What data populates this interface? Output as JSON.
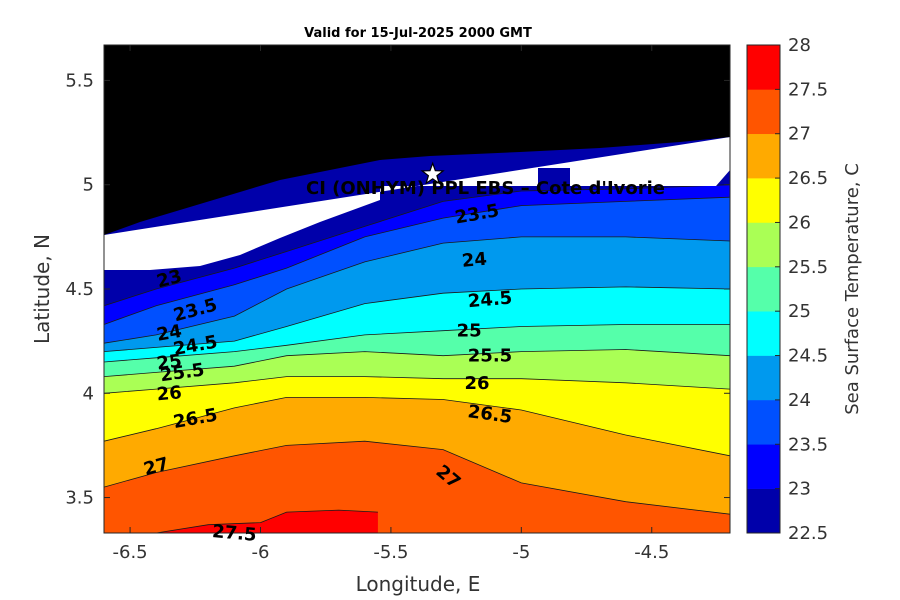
{
  "chart_data": {
    "type": "heatmap",
    "title": "Valid for 15-Jul-2025 2000 GMT",
    "xlabel": "Longitude, E",
    "ylabel": "Latitude, N",
    "xlim": [
      -6.6,
      -4.2
    ],
    "ylim": [
      3.33,
      5.67
    ],
    "xticks": [
      "-6.5",
      "-6",
      "-5.5",
      "-5",
      "-4.5"
    ],
    "xtick_values": [
      -6.5,
      -6,
      -5.5,
      -5,
      -4.5
    ],
    "yticks": [
      "3.5",
      "4",
      "4.5",
      "5",
      "5.5"
    ],
    "ytick_values": [
      3.5,
      4,
      4.5,
      5,
      5.5
    ],
    "grid": false,
    "land_color": "#000000",
    "site_label": "CI (ONHYM) PPL EBS  – Cote d'Ivorie",
    "site_marker": {
      "lon": -5.34,
      "lat": 5.05
    },
    "colorbar": {
      "label": "Sea Surface Temperature, C",
      "ticks": [
        "22.5",
        "23",
        "23.5",
        "24",
        "24.5",
        "25",
        "25.5",
        "26",
        "26.5",
        "27",
        "27.5",
        "28"
      ],
      "tick_values": [
        22.5,
        23,
        23.5,
        24,
        24.5,
        25,
        25.5,
        26,
        26.5,
        27,
        27.5,
        28
      ],
      "colors": [
        "#0000aa",
        "#0000ff",
        "#0050ff",
        "#0099ee",
        "#00ffff",
        "#55ffaa",
        "#aaff55",
        "#ffff00",
        "#ffaa00",
        "#ff5500",
        "#ff0000"
      ]
    },
    "contour_levels": [
      23,
      23.5,
      24,
      24.5,
      25,
      25.5,
      26,
      26.5,
      27
    ],
    "isotherms": [
      {
        "level": 23,
        "lon": [
          -6.6,
          -6.4,
          -6.1,
          -5.9,
          -5.6,
          -5.3,
          -5.0,
          -4.6,
          -4.2
        ],
        "lat": [
          4.42,
          4.5,
          4.6,
          4.68,
          4.8,
          4.92,
          4.97,
          4.98,
          5.0
        ]
      },
      {
        "level": 23.5,
        "lon": [
          -6.6,
          -6.4,
          -6.1,
          -5.9,
          -5.6,
          -5.3,
          -5.0,
          -4.6,
          -4.2
        ],
        "lat": [
          4.33,
          4.42,
          4.52,
          4.6,
          4.75,
          4.84,
          4.9,
          4.92,
          4.94
        ]
      },
      {
        "level": 24,
        "lon": [
          -6.6,
          -6.4,
          -6.1,
          -5.9,
          -5.6,
          -5.3,
          -5.0,
          -4.6,
          -4.2
        ],
        "lat": [
          4.24,
          4.28,
          4.37,
          4.5,
          4.63,
          4.72,
          4.75,
          4.75,
          4.73
        ]
      },
      {
        "level": 24.5,
        "lon": [
          -6.6,
          -6.4,
          -6.1,
          -5.9,
          -5.6,
          -5.3,
          -5.0,
          -4.6,
          -4.2
        ],
        "lat": [
          4.2,
          4.22,
          4.25,
          4.32,
          4.43,
          4.48,
          4.5,
          4.51,
          4.5
        ]
      },
      {
        "level": 25,
        "lon": [
          -6.6,
          -6.4,
          -6.1,
          -5.9,
          -5.6,
          -5.3,
          -5.0,
          -4.6,
          -4.2
        ],
        "lat": [
          4.15,
          4.17,
          4.2,
          4.23,
          4.28,
          4.3,
          4.32,
          4.33,
          4.33
        ]
      },
      {
        "level": 25.5,
        "lon": [
          -6.6,
          -6.4,
          -6.1,
          -5.9,
          -5.6,
          -5.3,
          -5.0,
          -4.6,
          -4.2
        ],
        "lat": [
          4.08,
          4.1,
          4.13,
          4.18,
          4.2,
          4.18,
          4.2,
          4.21,
          4.18
        ]
      },
      {
        "level": 26,
        "lon": [
          -6.6,
          -6.4,
          -6.1,
          -5.9,
          -5.6,
          -5.3,
          -5.0,
          -4.6,
          -4.2
        ],
        "lat": [
          4.0,
          4.02,
          4.05,
          4.08,
          4.08,
          4.07,
          4.07,
          4.05,
          4.02
        ]
      },
      {
        "level": 26.5,
        "lon": [
          -6.6,
          -6.4,
          -6.1,
          -5.9,
          -5.6,
          -5.3,
          -5.0,
          -4.6,
          -4.2
        ],
        "lat": [
          3.77,
          3.83,
          3.93,
          3.98,
          3.98,
          3.97,
          3.92,
          3.8,
          3.7
        ]
      },
      {
        "level": 27,
        "lon": [
          -6.6,
          -6.4,
          -6.1,
          -5.9,
          -5.6,
          -5.3,
          -5.0,
          -4.6,
          -4.2
        ],
        "lat": [
          3.55,
          3.62,
          3.7,
          3.75,
          3.77,
          3.73,
          3.57,
          3.48,
          3.42
        ]
      },
      {
        "level": 27.5,
        "lon": [
          -6.6,
          -6.4,
          -6.2,
          -6.0,
          -5.9,
          -5.7,
          -5.55
        ],
        "lat": [
          3.33,
          3.33,
          3.37,
          3.38,
          3.43,
          3.44,
          3.43
        ]
      }
    ],
    "contour_labels": [
      "23",
      "23.5",
      "24",
      "24.5",
      "25",
      "25.5",
      "26",
      "26.5",
      "27",
      "27.5",
      "23.5",
      "24",
      "24.5",
      "25",
      "25.5",
      "26",
      "26.5",
      "27"
    ],
    "contour_label_positions": [
      {
        "lon": -6.35,
        "lat": 4.55,
        "rot": -15
      },
      {
        "lon": -6.25,
        "lat": 4.4,
        "rot": -15
      },
      {
        "lon": -6.35,
        "lat": 4.29,
        "rot": -10
      },
      {
        "lon": -6.25,
        "lat": 4.23,
        "rot": -10
      },
      {
        "lon": -6.35,
        "lat": 4.15,
        "rot": -8
      },
      {
        "lon": -6.3,
        "lat": 4.1,
        "rot": -8
      },
      {
        "lon": -6.35,
        "lat": 4.0,
        "rot": -5
      },
      {
        "lon": -6.25,
        "lat": 3.88,
        "rot": -10
      },
      {
        "lon": -6.4,
        "lat": 3.65,
        "rot": -15
      },
      {
        "lon": -6.1,
        "lat": 3.33,
        "rot": 5
      },
      {
        "lon": -5.17,
        "lat": 4.86,
        "rot": -10
      },
      {
        "lon": -5.18,
        "lat": 4.64,
        "rot": -5
      },
      {
        "lon": -5.12,
        "lat": 4.45,
        "rot": -5
      },
      {
        "lon": -5.2,
        "lat": 4.3,
        "rot": 0
      },
      {
        "lon": -5.12,
        "lat": 4.18,
        "rot": 0
      },
      {
        "lon": -5.17,
        "lat": 4.05,
        "rot": 0
      },
      {
        "lon": -5.12,
        "lat": 3.9,
        "rot": 8
      },
      {
        "lon": -5.28,
        "lat": 3.6,
        "rot": 40
      }
    ]
  }
}
